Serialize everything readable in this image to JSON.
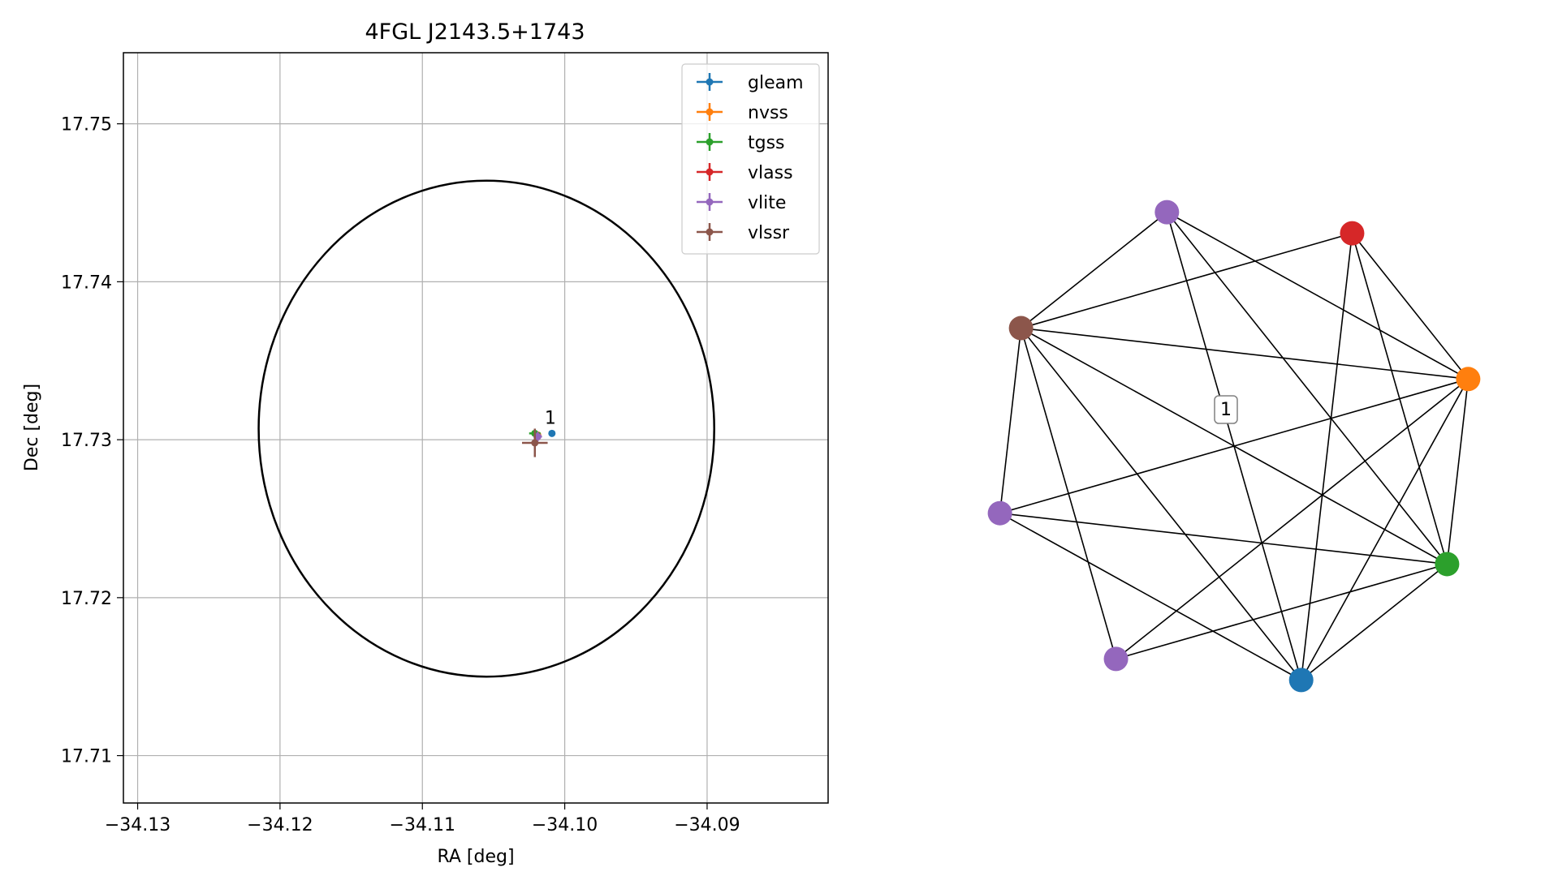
{
  "chart_data": [
    {
      "type": "scatter",
      "title": "4FGL J2143.5+1743",
      "xlabel": "RA [deg]",
      "ylabel": "Dec [deg]",
      "xlim": [
        -34.131,
        -34.0815
      ],
      "ylim": [
        17.707,
        17.7545
      ],
      "xticks": [
        -34.13,
        -34.12,
        -34.11,
        -34.1,
        -34.09
      ],
      "xtick_labels": [
        "−34.13",
        "−34.12",
        "−34.11",
        "−34.10",
        "−34.09"
      ],
      "yticks": [
        17.71,
        17.72,
        17.73,
        17.74,
        17.75
      ],
      "ytick_labels": [
        "17.71",
        "17.72",
        "17.73",
        "17.74",
        "17.75"
      ],
      "grid": true,
      "legend_position": "upper right",
      "ellipse": {
        "center_x": -34.1055,
        "center_y": 17.7307,
        "radius_x": 0.016,
        "radius_y": 0.0157,
        "color": "#000000"
      },
      "series": [
        {
          "name": "gleam",
          "color": "#1f77b4",
          "x": -34.1009,
          "y": 17.7304,
          "xerr": 0.0001,
          "yerr": 0.0001
        },
        {
          "name": "nvss",
          "color": "#ff7f0e",
          "x": -34.1019,
          "y": 17.7303,
          "xerr": 0.0002,
          "yerr": 0.0002
        },
        {
          "name": "tgss",
          "color": "#2ca02c",
          "x": -34.1021,
          "y": 17.7304,
          "xerr": 0.0004,
          "yerr": 0.0002
        },
        {
          "name": "vlass",
          "color": "#d62728",
          "x": -34.1019,
          "y": 17.7302,
          "xerr": 0.0001,
          "yerr": 0.0001
        },
        {
          "name": "vlite",
          "color": "#9467bd",
          "x": -34.1019,
          "y": 17.7302,
          "xerr": 0.0003,
          "yerr": 0.0003
        },
        {
          "name": "vlssr",
          "color": "#8c564b",
          "x": -34.1021,
          "y": 17.7298,
          "xerr": 0.0009,
          "yerr": 0.0009
        }
      ],
      "annotations": [
        {
          "text": "1",
          "x": -34.1009,
          "y": 17.7306
        }
      ]
    },
    {
      "type": "network",
      "edge_label": "1",
      "nodes": [
        {
          "id": "vlite_a",
          "color": "#9467bd"
        },
        {
          "id": "vlass",
          "color": "#d62728"
        },
        {
          "id": "nvss",
          "color": "#ff7f0e"
        },
        {
          "id": "tgss",
          "color": "#2ca02c"
        },
        {
          "id": "gleam",
          "color": "#1f77b4"
        },
        {
          "id": "vlite_b",
          "color": "#9467bd"
        },
        {
          "id": "vlite_c",
          "color": "#9467bd"
        },
        {
          "id": "vlssr",
          "color": "#8c564b"
        }
      ],
      "edges": [
        [
          "vlite_a",
          "tgss"
        ],
        [
          "vlite_a",
          "nvss"
        ],
        [
          "vlite_a",
          "gleam"
        ],
        [
          "vlite_a",
          "vlssr"
        ],
        [
          "vlass",
          "tgss"
        ],
        [
          "vlass",
          "nvss"
        ],
        [
          "vlass",
          "gleam"
        ],
        [
          "vlass",
          "vlssr"
        ],
        [
          "nvss",
          "tgss"
        ],
        [
          "nvss",
          "gleam"
        ],
        [
          "nvss",
          "vlite_b"
        ],
        [
          "nvss",
          "vlite_c"
        ],
        [
          "nvss",
          "vlssr"
        ],
        [
          "tgss",
          "gleam"
        ],
        [
          "tgss",
          "vlite_b"
        ],
        [
          "tgss",
          "vlite_c"
        ],
        [
          "tgss",
          "vlssr"
        ],
        [
          "gleam",
          "vlite_c"
        ],
        [
          "gleam",
          "vlssr"
        ],
        [
          "vlite_b",
          "vlssr"
        ],
        [
          "vlite_c",
          "vlssr"
        ]
      ]
    }
  ]
}
